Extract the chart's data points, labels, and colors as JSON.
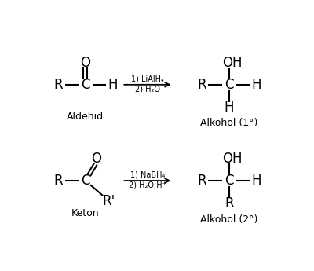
{
  "bg_color": "#ffffff",
  "text_color": "#000000",
  "line_color": "#000000",
  "fig_width": 4.0,
  "fig_height": 3.45,
  "dpi": 100,
  "reaction1": {
    "label_left": "Aldehid",
    "label_right": "Alkohol (1°)",
    "reagent_line1": "1) LiAlH₄",
    "reagent_line2": "2) H₂O"
  },
  "reaction2": {
    "label_left": "Keton",
    "label_right": "Alkohol (2°)",
    "reagent_line1": "1) NaBH₄",
    "reagent_line2": "2) H₂O;H⁺"
  }
}
